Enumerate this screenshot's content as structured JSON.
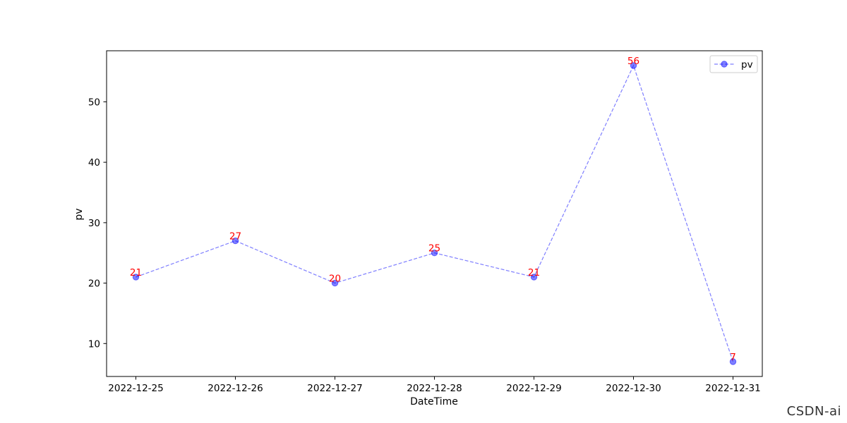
{
  "chart_data": {
    "type": "line",
    "title": "",
    "xlabel": "DateTime",
    "ylabel": "pv",
    "categories": [
      "2022-12-25",
      "2022-12-26",
      "2022-12-27",
      "2022-12-28",
      "2022-12-29",
      "2022-12-30",
      "2022-12-31"
    ],
    "series": [
      {
        "name": "pv",
        "values": [
          21,
          27,
          20,
          25,
          21,
          56,
          7
        ],
        "color": "#0000ff",
        "linestyle": "dashed",
        "marker": "circle",
        "alpha": 0.5
      }
    ],
    "ylim": [
      4.55,
      58.45
    ],
    "yticks": [
      10,
      20,
      30,
      40,
      50
    ],
    "data_labels": {
      "show": true,
      "color": "#ff0000"
    },
    "grid": false,
    "legend": {
      "position": "upper right",
      "entries": [
        "pv"
      ]
    }
  },
  "watermark": "CSDN-ai"
}
